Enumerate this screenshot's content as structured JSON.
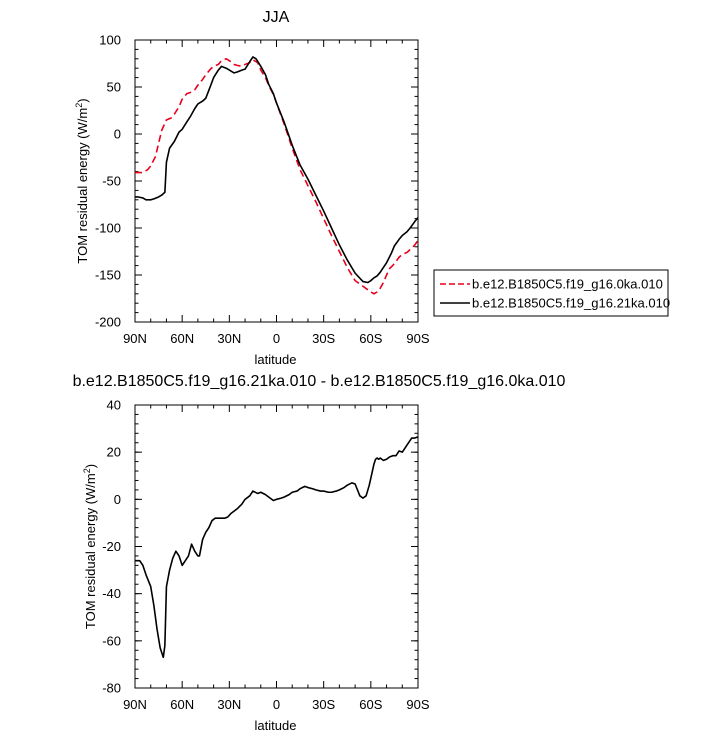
{
  "chart_data": [
    {
      "type": "line",
      "title": "JJA",
      "xlabel": "latitude",
      "ylabel": "TOM residual energy (W/m²)",
      "ylabel_main": "TOM residual energy (W/m",
      "ylabel_sup": "2",
      "ylabel_end": ")",
      "xlim": [
        90,
        -90
      ],
      "ylim": [
        -200,
        100
      ],
      "x_ticks": [
        90,
        60,
        30,
        0,
        -30,
        -60,
        -90
      ],
      "x_tick_labels": [
        "90N",
        "60N",
        "30N",
        "0",
        "30S",
        "60S",
        "90S"
      ],
      "y_ticks": [
        -200,
        -150,
        -100,
        -50,
        0,
        50,
        100
      ],
      "y_tick_labels": [
        "-200",
        "-150",
        "-100",
        "-50",
        "0",
        "50",
        "100"
      ],
      "legend_position": "right",
      "series": [
        {
          "name": "b.e12.B1850C5.f19_g16.0ka.010",
          "color": "#e8001c",
          "dash": "dashed",
          "x": [
            90,
            85,
            82,
            80,
            77,
            75,
            73,
            70,
            67,
            65,
            62,
            60,
            57,
            55,
            52,
            50,
            47,
            45,
            42,
            40,
            37,
            35,
            32,
            30,
            27,
            25,
            22,
            20,
            17,
            15,
            12,
            10,
            7,
            5,
            2,
            0,
            -5,
            -10,
            -15,
            -20,
            -25,
            -30,
            -35,
            -40,
            -45,
            -50,
            -55,
            -60,
            -62,
            -64,
            -66,
            -68,
            -70,
            -72,
            -75,
            -78,
            -80,
            -83,
            -85,
            -88,
            -90
          ],
          "y": [
            -41,
            -41,
            -38,
            -34,
            -24,
            -10,
            4,
            15,
            17,
            21,
            29,
            37,
            43,
            44,
            47,
            52,
            58,
            63,
            69,
            72,
            74,
            78,
            80,
            78,
            74,
            73,
            72,
            74,
            76,
            79,
            76,
            68,
            60,
            52,
            42,
            33,
            10,
            -15,
            -38,
            -55,
            -72,
            -90,
            -108,
            -125,
            -142,
            -156,
            -162,
            -168,
            -170,
            -168,
            -164,
            -158,
            -150,
            -143,
            -138,
            -131,
            -128,
            -126,
            -123,
            -118,
            -113
          ]
        },
        {
          "name": "b.e12.B1850C5.f19_g16.21ka.010",
          "color": "#000000",
          "dash": "solid",
          "x": [
            90,
            88,
            85,
            83,
            80,
            78,
            75,
            73,
            71,
            70,
            68,
            65,
            62,
            60,
            57,
            55,
            52,
            50,
            47,
            45,
            42,
            40,
            37,
            35,
            32,
            30,
            27,
            25,
            22,
            20,
            17,
            15,
            13,
            10,
            7,
            5,
            2,
            0,
            -5,
            -10,
            -15,
            -20,
            -25,
            -30,
            -35,
            -40,
            -45,
            -50,
            -55,
            -58,
            -60,
            -62,
            -64,
            -66,
            -68,
            -70,
            -73,
            -75,
            -78,
            -80,
            -83,
            -85,
            -88,
            -90
          ],
          "y": [
            -67,
            -67,
            -68,
            -70,
            -70,
            -69,
            -67,
            -65,
            -62,
            -30,
            -15,
            -8,
            2,
            5,
            13,
            18,
            27,
            32,
            35,
            38,
            51,
            60,
            68,
            72,
            70,
            68,
            65,
            66,
            68,
            69,
            77,
            82,
            80,
            72,
            63,
            53,
            43,
            33,
            12,
            -12,
            -33,
            -48,
            -65,
            -82,
            -100,
            -118,
            -134,
            -148,
            -157,
            -158,
            -156,
            -153,
            -151,
            -147,
            -142,
            -137,
            -127,
            -119,
            -112,
            -108,
            -104,
            -100,
            -93,
            -89
          ]
        }
      ]
    },
    {
      "type": "line",
      "title": "b.e12.B1850C5.f19_g16.21ka.010 - b.e12.B1850C5.f19_g16.0ka.010",
      "xlabel": "latitude",
      "ylabel": "TOM residual energy (W/m²)",
      "ylabel_main": "TOM residual energy (W/m",
      "ylabel_sup": "2",
      "ylabel_end": ")",
      "xlim": [
        90,
        -90
      ],
      "ylim": [
        -80,
        40
      ],
      "x_ticks": [
        90,
        60,
        30,
        0,
        -30,
        -60,
        -90
      ],
      "x_tick_labels": [
        "90N",
        "60N",
        "30N",
        "0",
        "30S",
        "60S",
        "90S"
      ],
      "y_ticks": [
        -80,
        -60,
        -40,
        -20,
        0,
        20,
        40
      ],
      "y_tick_labels": [
        "-80",
        "-60",
        "-40",
        "-20",
        "0",
        "20",
        "40"
      ],
      "series": [
        {
          "color": "#000000",
          "dash": "solid",
          "x": [
            90,
            87,
            85,
            83,
            80,
            78,
            76,
            74,
            72,
            71,
            70,
            68,
            66,
            64,
            62,
            60,
            58,
            56,
            54,
            52,
            50,
            49,
            47,
            45,
            43,
            41,
            39,
            37,
            35,
            33,
            31,
            29,
            27,
            25,
            22,
            20,
            17,
            15,
            12,
            10,
            7,
            5,
            2,
            0,
            -3,
            -5,
            -8,
            -10,
            -13,
            -15,
            -18,
            -20,
            -23,
            -25,
            -28,
            -30,
            -33,
            -35,
            -38,
            -40,
            -43,
            -45,
            -48,
            -50,
            -53,
            -55,
            -57,
            -59,
            -61,
            -62,
            -63,
            -64,
            -65,
            -66,
            -67,
            -68,
            -70,
            -72,
            -74,
            -76,
            -78,
            -80,
            -82,
            -84,
            -86,
            -88,
            -90
          ],
          "y": [
            -26,
            -26,
            -28,
            -32,
            -37,
            -45,
            -55,
            -63,
            -67,
            -62,
            -37,
            -30,
            -25,
            -22,
            -24,
            -28,
            -26,
            -24,
            -19,
            -22,
            -24,
            -24,
            -17,
            -14,
            -12,
            -9,
            -8,
            -8,
            -8,
            -8,
            -7.5,
            -6,
            -5,
            -4,
            -2,
            0,
            1.5,
            3.5,
            2.5,
            3,
            2,
            1,
            -0.5,
            0,
            0.5,
            1,
            2,
            3,
            3.5,
            4.5,
            5.5,
            5,
            4.5,
            4,
            3.5,
            3.5,
            3,
            3,
            3.5,
            4,
            5,
            6,
            7,
            6.5,
            1.5,
            0.5,
            1.5,
            6,
            12,
            15,
            17,
            17.5,
            17,
            17.5,
            17,
            16.5,
            17,
            18,
            18.5,
            18.5,
            20.5,
            20,
            22,
            24,
            26,
            26,
            26.5
          ]
        }
      ]
    }
  ]
}
